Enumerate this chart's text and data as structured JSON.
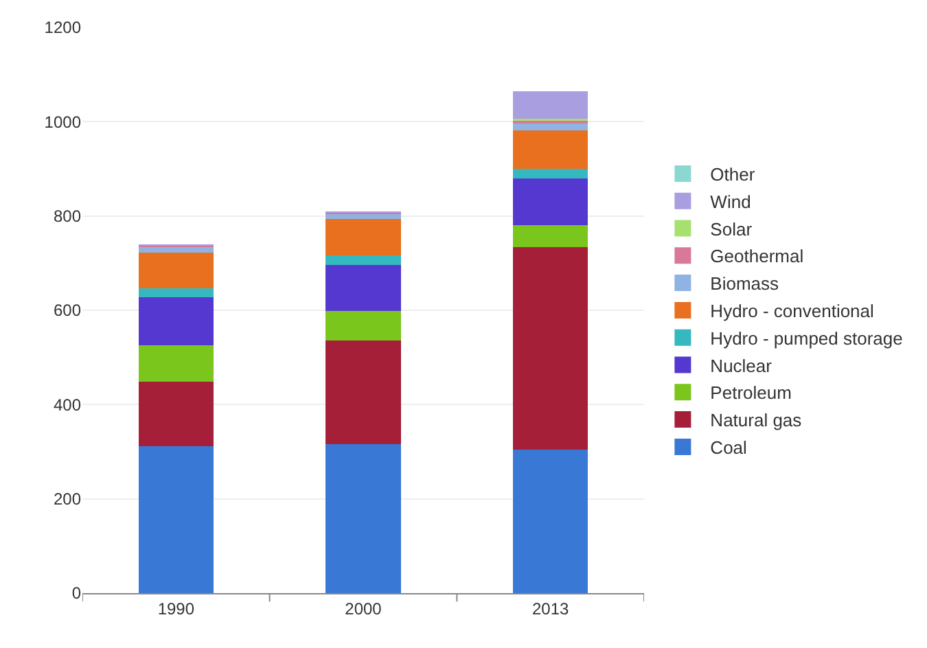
{
  "chart_data": {
    "type": "bar",
    "stacked": true,
    "categories": [
      "1990",
      "2000",
      "2013"
    ],
    "series": [
      {
        "name": "Coal",
        "color": "#3a78d6",
        "values": [
          311,
          316,
          304
        ]
      },
      {
        "name": "Natural gas",
        "color": "#a51f38",
        "values": [
          138,
          220,
          430
        ]
      },
      {
        "name": "Petroleum",
        "color": "#7ac61d",
        "values": [
          77,
          62,
          47
        ]
      },
      {
        "name": "Nuclear",
        "color": "#5538cf",
        "values": [
          101,
          98,
          98
        ]
      },
      {
        "name": "Hydro - pumped storage",
        "color": "#35b8c0",
        "values": [
          20,
          21,
          21
        ]
      },
      {
        "name": "Hydro - conventional",
        "color": "#e8701e",
        "values": [
          75,
          77,
          81
        ]
      },
      {
        "name": "Biomass",
        "color": "#8fb4e3",
        "values": [
          12,
          11,
          17
        ]
      },
      {
        "name": "Geothermal",
        "color": "#d8789a",
        "values": [
          3,
          2,
          4
        ]
      },
      {
        "name": "Solar",
        "color": "#a8e070",
        "values": [
          0,
          0,
          5
        ]
      },
      {
        "name": "Wind",
        "color": "#a89ee0",
        "values": [
          1,
          2,
          58
        ]
      },
      {
        "name": "Other",
        "color": "#8ad8d0",
        "values": [
          0,
          0,
          0
        ]
      }
    ],
    "ylim": [
      0,
      1200
    ],
    "yticks": [
      0,
      200,
      400,
      600,
      800,
      1000,
      1200
    ],
    "grid": "y",
    "legend": "right"
  }
}
